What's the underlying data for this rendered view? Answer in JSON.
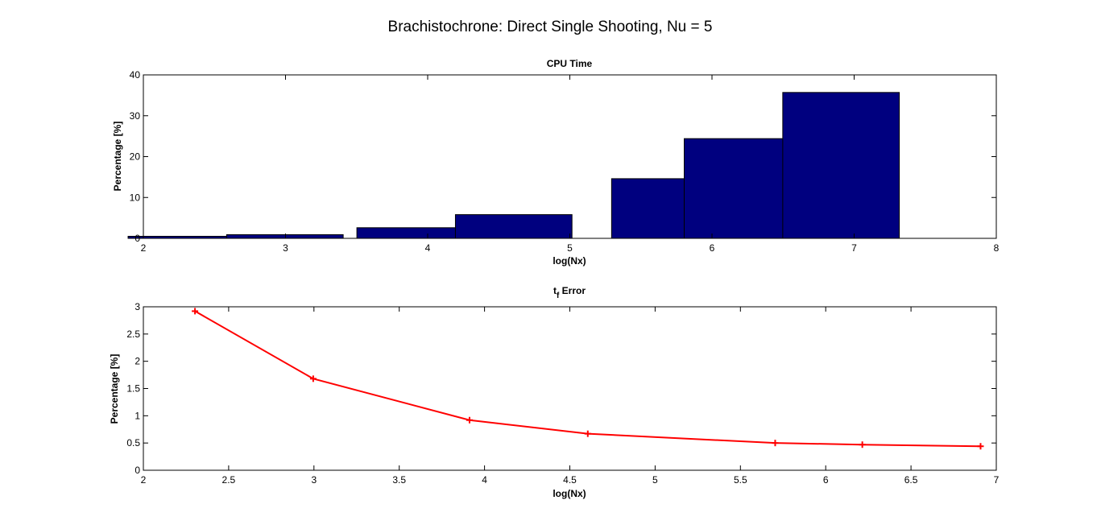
{
  "figure": {
    "suptitle": "Brachistochrone: Direct Single Shooting, Nu = 5"
  },
  "chart_data": [
    {
      "type": "bar",
      "title": "CPU Time",
      "xlabel": "log(Nx)",
      "ylabel": "Percentage [%]",
      "xlim": [
        2,
        8
      ],
      "ylim": [
        0,
        40
      ],
      "xticks": [
        "2",
        "3",
        "4",
        "5",
        "6",
        "7",
        "8"
      ],
      "yticks": [
        "0",
        "10",
        "20",
        "30",
        "40"
      ],
      "bar_color": "#00007f",
      "x": [
        2.3026,
        2.9957,
        3.912,
        4.6052,
        5.7038,
        6.2146,
        6.9078
      ],
      "values": [
        0.5,
        0.9,
        2.6,
        5.8,
        14.6,
        24.4,
        35.7
      ],
      "grid": false,
      "legend": "none"
    },
    {
      "type": "line",
      "title_main": "t",
      "title_sub": "f",
      "title_rest": " Error",
      "xlabel": "log(Nx)",
      "ylabel": "Percentage [%]",
      "xlim": [
        2,
        7
      ],
      "ylim": [
        0,
        3
      ],
      "xticks": [
        "2",
        "2.5",
        "3",
        "3.5",
        "4",
        "4.5",
        "5",
        "5.5",
        "6",
        "6.5",
        "7"
      ],
      "yticks": [
        "0",
        "0.5",
        "1",
        "1.5",
        "2",
        "2.5",
        "3"
      ],
      "line_color": "#ff0000",
      "marker": "+",
      "x": [
        2.3026,
        2.9957,
        3.912,
        4.6052,
        5.7038,
        6.2146,
        6.9078
      ],
      "y": [
        2.92,
        1.68,
        0.92,
        0.67,
        0.5,
        0.47,
        0.44
      ],
      "grid": false,
      "legend": "none"
    }
  ]
}
